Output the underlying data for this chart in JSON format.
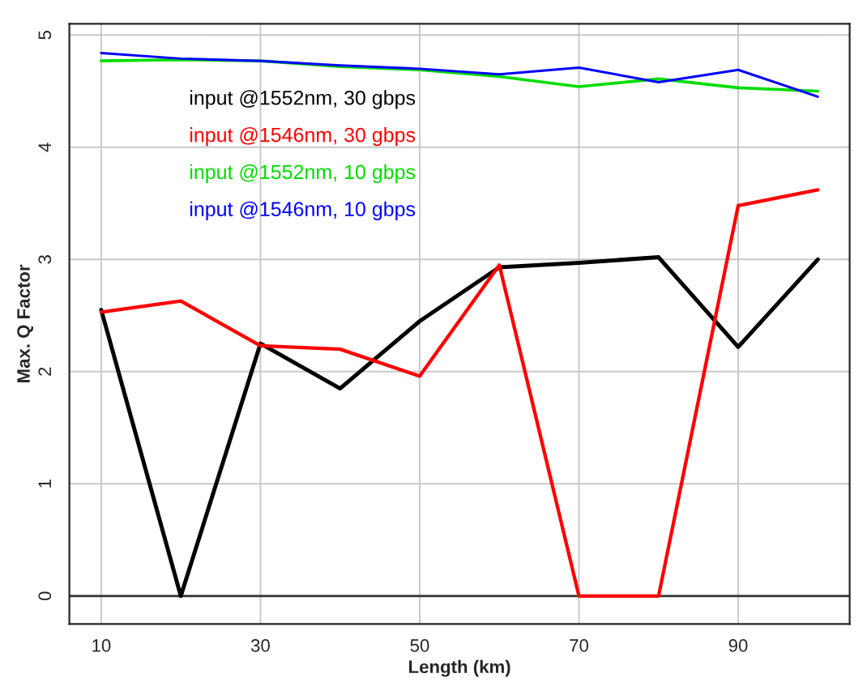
{
  "chart_data": {
    "type": "line",
    "xlabel": "Length (km)",
    "ylabel": "Max. Q Factor",
    "x": [
      10,
      20,
      30,
      40,
      50,
      60,
      70,
      80,
      90,
      100
    ],
    "series": [
      {
        "name": "input @1552nm, 30 gbps",
        "color": "#000000",
        "values": [
          2.55,
          0,
          2.25,
          1.85,
          2.45,
          2.93,
          2.97,
          3.02,
          2.22,
          3.0
        ]
      },
      {
        "name": "input @1546nm, 30 gbps",
        "color": "#ff0000",
        "values": [
          2.53,
          2.63,
          2.23,
          2.2,
          1.96,
          2.95,
          0,
          0,
          3.48,
          3.62
        ]
      },
      {
        "name": "input @1552nm, 10 gbps",
        "color": "#00dd00",
        "values": [
          4.77,
          4.78,
          4.77,
          4.72,
          4.69,
          4.63,
          4.54,
          4.61,
          4.53,
          4.5
        ]
      },
      {
        "name": "input @1546nm, 10 gbps",
        "color": "#0000ff",
        "values": [
          4.84,
          4.79,
          4.77,
          4.73,
          4.7,
          4.65,
          4.71,
          4.58,
          4.69,
          4.45
        ]
      }
    ],
    "xlim": [
      6,
      104
    ],
    "xticks": [
      10,
      30,
      50,
      70,
      90
    ],
    "ylim": [
      -0.25,
      5.1
    ],
    "yticks": [
      0,
      1,
      2,
      3,
      4,
      5
    ],
    "grid": true,
    "legend": "top left",
    "marker": "none",
    "line_style": "solid"
  }
}
